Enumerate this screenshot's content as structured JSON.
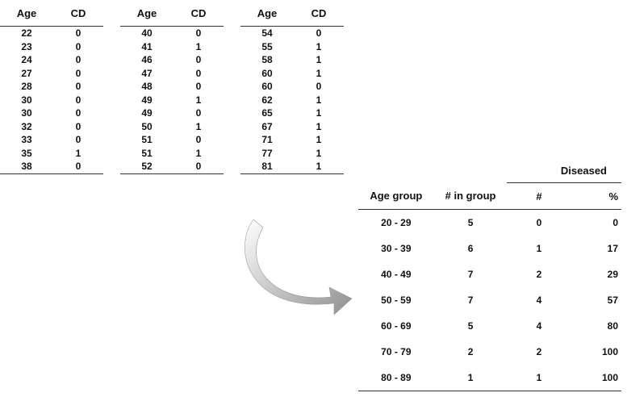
{
  "raw_tables": [
    {
      "headers": [
        "Age",
        "CD"
      ],
      "rows": [
        [
          "22",
          "0"
        ],
        [
          "23",
          "0"
        ],
        [
          "24",
          "0"
        ],
        [
          "27",
          "0"
        ],
        [
          "28",
          "0"
        ],
        [
          "30",
          "0"
        ],
        [
          "30",
          "0"
        ],
        [
          "32",
          "0"
        ],
        [
          "33",
          "0"
        ],
        [
          "35",
          "1"
        ],
        [
          "38",
          "0"
        ]
      ]
    },
    {
      "headers": [
        "Age",
        "CD"
      ],
      "rows": [
        [
          "40",
          "0"
        ],
        [
          "41",
          "1"
        ],
        [
          "46",
          "0"
        ],
        [
          "47",
          "0"
        ],
        [
          "48",
          "0"
        ],
        [
          "49",
          "1"
        ],
        [
          "49",
          "0"
        ],
        [
          "50",
          "1"
        ],
        [
          "51",
          "0"
        ],
        [
          "51",
          "1"
        ],
        [
          "52",
          "0"
        ]
      ]
    },
    {
      "headers": [
        "Age",
        "CD"
      ],
      "rows": [
        [
          "54",
          "0"
        ],
        [
          "55",
          "1"
        ],
        [
          "58",
          "1"
        ],
        [
          "60",
          "1"
        ],
        [
          "60",
          "0"
        ],
        [
          "62",
          "1"
        ],
        [
          "65",
          "1"
        ],
        [
          "67",
          "1"
        ],
        [
          "71",
          "1"
        ],
        [
          "77",
          "1"
        ],
        [
          "81",
          "1"
        ]
      ]
    }
  ],
  "summary": {
    "group_header": "Diseased",
    "headers": [
      "Age group",
      "# in group",
      "#",
      "%"
    ],
    "rows": [
      [
        "20 - 29",
        "5",
        "0",
        "0"
      ],
      [
        "30 - 39",
        "6",
        "1",
        "17"
      ],
      [
        "40 - 49",
        "7",
        "2",
        "29"
      ],
      [
        "50 - 59",
        "7",
        "4",
        "57"
      ],
      [
        "60 - 69",
        "5",
        "4",
        "80"
      ],
      [
        "70 - 79",
        "2",
        "2",
        "100"
      ],
      [
        "80 - 89",
        "1",
        "1",
        "100"
      ]
    ]
  },
  "arrow_color": "#8f8f8f"
}
